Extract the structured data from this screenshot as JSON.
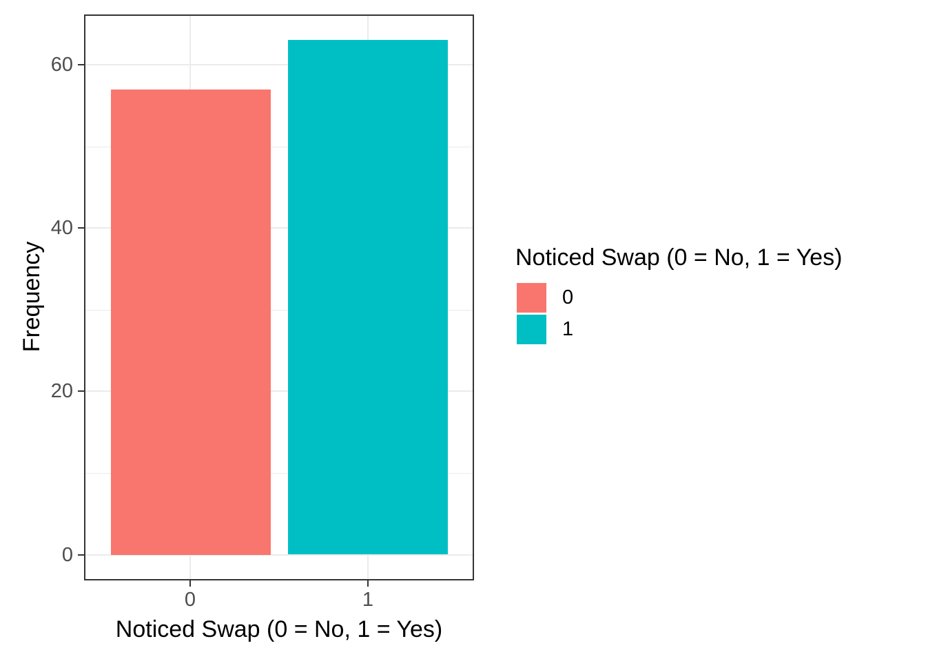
{
  "chart_data": {
    "type": "bar",
    "categories": [
      "0",
      "1"
    ],
    "values": [
      57,
      63
    ],
    "bar_colors": [
      "#F8766D",
      "#00BFC4"
    ],
    "xlabel": "Noticed Swap (0 = No, 1 = Yes)",
    "ylabel": "Frequency",
    "yticks_major": [
      0,
      20,
      40,
      60
    ],
    "yticks_minor": [
      10,
      30,
      50
    ],
    "ylim": [
      -3.15,
      66.15
    ],
    "grid": "horizontal major+minor, vertical major at categories",
    "legend": {
      "position": "right",
      "title": "Noticed Swap (0 = No, 1 = Yes)",
      "entries": [
        {
          "label": "0",
          "color": "#F8766D"
        },
        {
          "label": "1",
          "color": "#00BFC4"
        }
      ]
    },
    "style": {
      "panel_background": "#FFFFFF",
      "grid_color": "#EBEBEB",
      "panel_border_color": "#333333",
      "tick_color": "#333333",
      "axis_text_color": "#4D4D4D",
      "title_color": "#000000"
    }
  }
}
